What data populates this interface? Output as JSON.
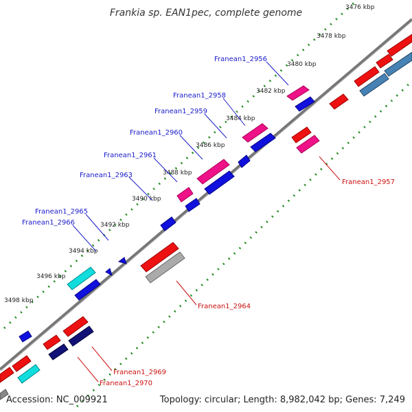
{
  "title": "Frankia sp. EAN1pec, complete genome",
  "accession": "Accession: NC_009921",
  "summary": "Topology: circular; Length: 8,982,042 bp; Genes: 7,249",
  "kbp_ticks": [
    "3476 kbp",
    "3478 kbp",
    "3480 kbp",
    "3482 kbp",
    "3484 kbp",
    "3486 kbp",
    "3488 kbp",
    "3490 kbp",
    "3492 kbp",
    "3494 kbp",
    "3496 kbp",
    "3498 kbp"
  ],
  "genes_forward": [
    "Franean1_2956",
    "Franean1_2958",
    "Franean1_2959",
    "Franean1_2960",
    "Franean1_2961",
    "Franean1_2963",
    "Franean1_2965",
    "Franean1_2966"
  ],
  "genes_reverse": [
    "Franean1_2957",
    "Franean1_2964",
    "Franean1_2969",
    "Franean1_2970"
  ],
  "colors": {
    "forward_label": "#1a1acc",
    "reverse_label": "#cc1111",
    "cds_blue": "#1111dd",
    "cds_red": "#ee1111",
    "cds_pink": "#ee1188",
    "cds_cyan": "#11dddd",
    "cds_navy": "#111177",
    "cds_steel": "#4682b4",
    "cds_grey": "#aaaaaa",
    "backbone": "#888888",
    "tick_green": "#228b22"
  }
}
